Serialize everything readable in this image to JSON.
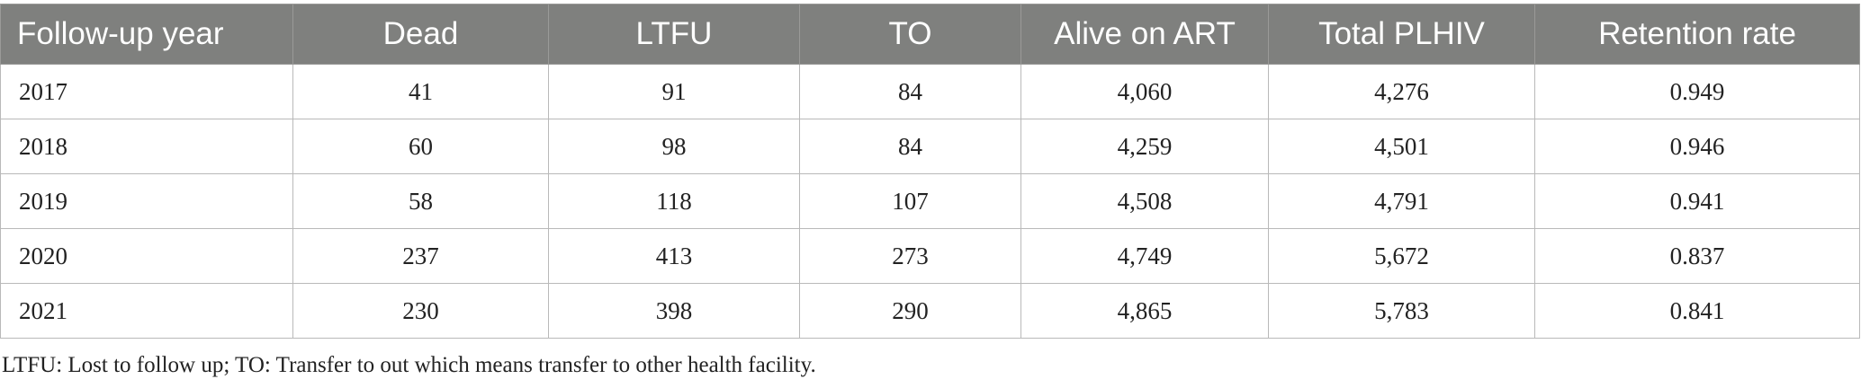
{
  "table": {
    "headers": [
      "Follow-up year",
      "Dead",
      "LTFU",
      "TO",
      "Alive on ART",
      "Total PLHIV",
      "Retention rate"
    ],
    "rows": [
      [
        "2017",
        "41",
        "91",
        "84",
        "4,060",
        "4,276",
        "0.949"
      ],
      [
        "2018",
        "60",
        "98",
        "84",
        "4,259",
        "4,501",
        "0.946"
      ],
      [
        "2019",
        "58",
        "118",
        "107",
        "4,508",
        "4,791",
        "0.941"
      ],
      [
        "2020",
        "237",
        "413",
        "273",
        "4,749",
        "5,672",
        "0.837"
      ],
      [
        "2021",
        "230",
        "398",
        "290",
        "4,865",
        "5,783",
        "0.841"
      ]
    ]
  },
  "footnote": "LTFU: Lost to follow up; TO: Transfer to out which means transfer to other health facility.",
  "colors": {
    "header_bg": "#7f807e",
    "header_text": "#ffffff",
    "border": "#b9b9b9"
  }
}
